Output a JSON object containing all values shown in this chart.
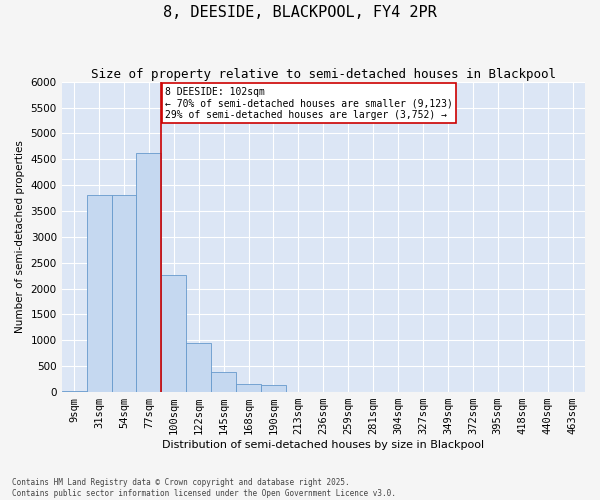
{
  "title": "8, DEESIDE, BLACKPOOL, FY4 2PR",
  "subtitle": "Size of property relative to semi-detached houses in Blackpool",
  "xlabel": "Distribution of semi-detached houses by size in Blackpool",
  "ylabel": "Number of semi-detached properties",
  "categories": [
    "9sqm",
    "31sqm",
    "54sqm",
    "77sqm",
    "100sqm",
    "122sqm",
    "145sqm",
    "168sqm",
    "190sqm",
    "213sqm",
    "236sqm",
    "259sqm",
    "281sqm",
    "304sqm",
    "327sqm",
    "349sqm",
    "372sqm",
    "395sqm",
    "418sqm",
    "440sqm",
    "463sqm"
  ],
  "values": [
    30,
    3800,
    3800,
    4620,
    2270,
    950,
    380,
    150,
    130,
    0,
    0,
    0,
    0,
    0,
    0,
    0,
    0,
    0,
    0,
    0,
    0
  ],
  "bar_color": "#c5d8f0",
  "bar_edge_color": "#6699cc",
  "vline_x_index": 4,
  "annotation_text": "8 DEESIDE: 102sqm\n← 70% of semi-detached houses are smaller (9,123)\n29% of semi-detached houses are larger (3,752) →",
  "ylim": [
    0,
    6000
  ],
  "yticks": [
    0,
    500,
    1000,
    1500,
    2000,
    2500,
    3000,
    3500,
    4000,
    4500,
    5000,
    5500,
    6000
  ],
  "bg_color": "#dce6f5",
  "grid_color": "#ffffff",
  "fig_bg_color": "#f5f5f5",
  "footer": "Contains HM Land Registry data © Crown copyright and database right 2025.\nContains public sector information licensed under the Open Government Licence v3.0.",
  "title_fontsize": 11,
  "subtitle_fontsize": 9,
  "annotation_box_edge_color": "#cc0000",
  "vline_color": "#cc0000",
  "ylabel_fontsize": 7.5,
  "xlabel_fontsize": 8,
  "ytick_fontsize": 7.5,
  "xtick_fontsize": 6.5,
  "footer_fontsize": 5.5,
  "annotation_fontsize": 7
}
